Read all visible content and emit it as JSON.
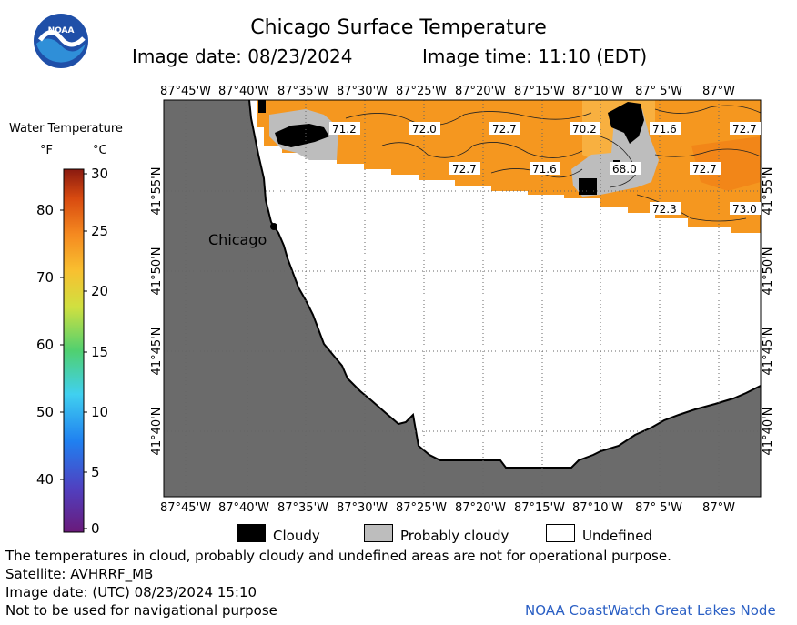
{
  "header": {
    "title": "Chicago Surface Temperature",
    "image_date": "Image date: 08/23/2024",
    "image_time": "Image time: 11:10 (EDT)"
  },
  "logo": {
    "text": "NOAA",
    "icon": "noaa-logo-icon"
  },
  "legend": {
    "title": "Water Temperature",
    "unit_f": "°F",
    "unit_c": "°C",
    "f_ticks": [
      "80",
      "70",
      "60",
      "50",
      "40"
    ],
    "c_ticks": [
      "30",
      "25",
      "20",
      "15",
      "10",
      "5",
      "0"
    ]
  },
  "map": {
    "top_lon_labels": [
      "87°45'W",
      "87°40'W",
      "87°35'W",
      "87°30'W",
      "87°25'W",
      "87°20'W",
      "87°15'W",
      "87°10'W",
      "87° 5'W",
      "87°W"
    ],
    "bottom_lon_labels": [
      "87°45'W",
      "87°40'W",
      "87°35'W",
      "87°30'W",
      "87°25'W",
      "87°20'W",
      "87°15'W",
      "87°10'W",
      "87° 5'W",
      "87°W"
    ],
    "lat_labels": [
      "41°55'N",
      "41°50'N",
      "41°45'N",
      "41°40'N"
    ],
    "city_label": "Chicago",
    "temp_labels": [
      "71.2",
      "72.0",
      "72.7",
      "70.2",
      "71.6",
      "72.7",
      "72.7",
      "71.6",
      "68.0",
      "72.7",
      "72.3",
      "73.0"
    ],
    "colors": {
      "land": "#6b6b6b",
      "water_warm": "#f5971f",
      "water_warmer": "#f08a1a",
      "cloudy": "#000000",
      "probably_cloudy": "#bdbdbd",
      "undefined": "#ffffff"
    }
  },
  "key": {
    "cloudy": "Cloudy",
    "probably_cloudy": "Probably cloudy",
    "undefined": "Undefined"
  },
  "footer": {
    "note": "The temperatures in cloud, probably cloudy and undefined areas are not for operational purpose.",
    "satellite": "Satellite: AVHRRF_MB",
    "utc_date": "Image date: (UTC) 08/23/2024   15:10",
    "nav_warning": "Not to be used for navigational purpose",
    "credit": "NOAA CoastWatch Great Lakes Node"
  }
}
